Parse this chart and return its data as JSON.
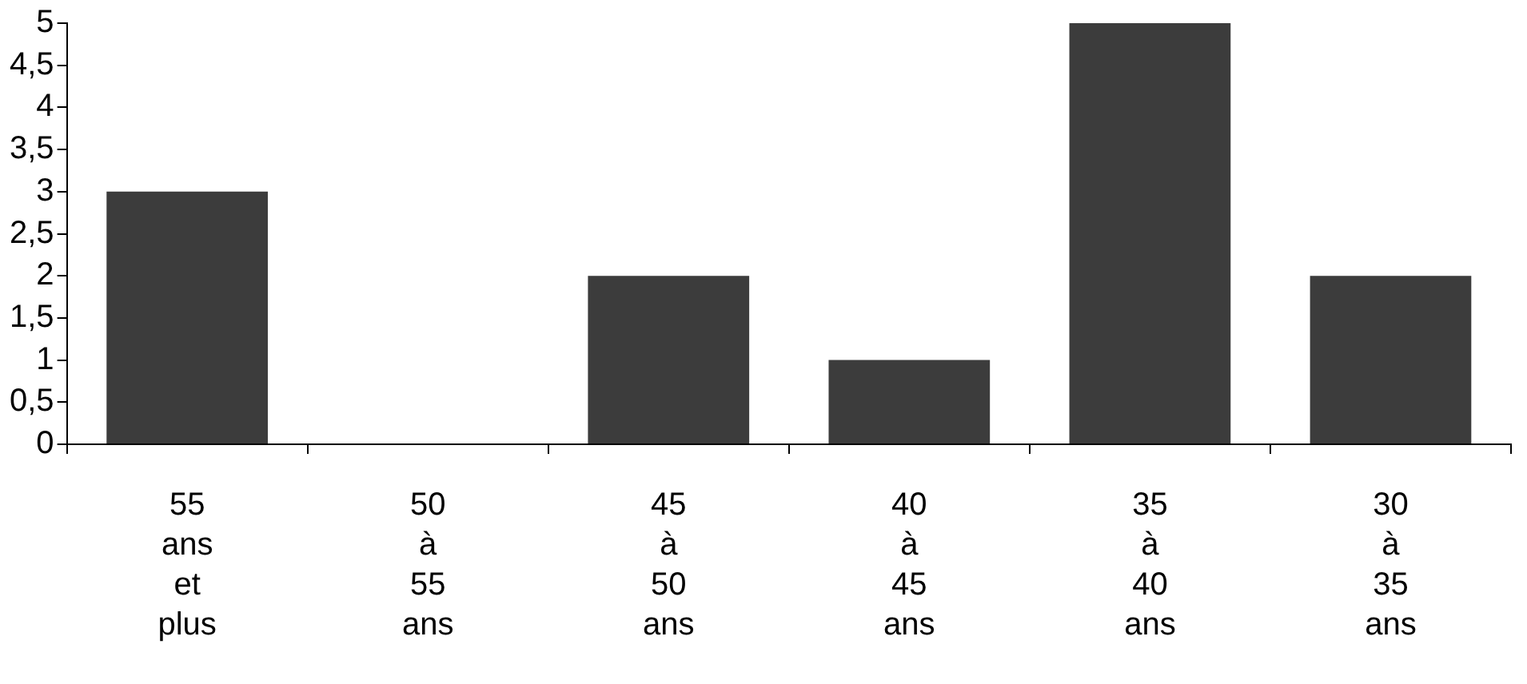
{
  "chart_data": {
    "type": "bar",
    "categories": [
      "55 ans et plus",
      "50 à 55 ans",
      "45 à 50 ans",
      "40 à 45 ans",
      "35 à 40 ans",
      "30 à 35 ans"
    ],
    "values": [
      3,
      0,
      2,
      1,
      5,
      2
    ],
    "color": "#3c3c3c",
    "ylim": [
      0,
      5
    ],
    "yticks": [
      0,
      {
        "value": 0.5,
        "label": "0,5"
      },
      1,
      {
        "value": 1.5,
        "label": "1,5"
      },
      2,
      {
        "value": 2.5,
        "label": "2,5"
      },
      3,
      {
        "value": 3.5,
        "label": "3,5"
      },
      4,
      {
        "value": 4.5,
        "label": "4,5"
      },
      5
    ],
    "grid": false,
    "legend": false
  }
}
